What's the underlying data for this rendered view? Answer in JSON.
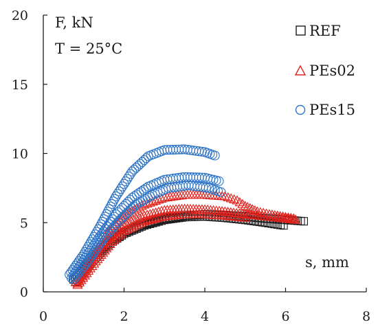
{
  "chart_data": {
    "type": "scatter",
    "title": "",
    "annotations": {
      "y_unit_label": "F, kN",
      "temperature_label": "T = 25°C",
      "x_unit_label": "s, mm"
    },
    "xlim": [
      0,
      8
    ],
    "ylim": [
      0,
      20
    ],
    "x_ticks": [
      0,
      2,
      4,
      6,
      8
    ],
    "y_ticks": [
      0,
      5,
      10,
      15,
      20
    ],
    "grid": false,
    "legend_position": "top-right",
    "series": [
      {
        "name": "REF",
        "marker": "square",
        "color": "#1a1a1a",
        "curves": [
          {
            "points": [
              [
                0.75,
                0.9
              ],
              [
                1.2,
                2.4
              ],
              [
                1.6,
                3.5
              ],
              [
                2.0,
                4.3
              ],
              [
                2.5,
                4.9
              ],
              [
                3.0,
                5.3
              ],
              [
                3.5,
                5.5
              ],
              [
                4.0,
                5.6
              ],
              [
                4.5,
                5.55
              ],
              [
                5.0,
                5.45
              ],
              [
                5.5,
                5.3
              ],
              [
                6.0,
                5.2
              ],
              [
                6.45,
                5.1
              ]
            ]
          },
          {
            "points": [
              [
                0.8,
                0.75
              ],
              [
                1.2,
                2.2
              ],
              [
                1.6,
                3.4
              ],
              [
                2.0,
                4.2
              ],
              [
                2.5,
                4.8
              ],
              [
                3.0,
                5.2
              ],
              [
                3.5,
                5.4
              ],
              [
                4.0,
                5.45
              ],
              [
                4.5,
                5.35
              ],
              [
                5.0,
                5.2
              ],
              [
                5.5,
                5.0
              ],
              [
                5.95,
                4.8
              ]
            ]
          }
        ]
      },
      {
        "name": "PEs02",
        "marker": "triangle",
        "color": "#e0201b",
        "curves": [
          {
            "points": [
              [
                0.8,
                0.7
              ],
              [
                1.2,
                2.5
              ],
              [
                1.6,
                4.3
              ],
              [
                2.0,
                5.5
              ],
              [
                2.5,
                6.3
              ],
              [
                3.0,
                6.8
              ],
              [
                3.5,
                7.0
              ],
              [
                4.0,
                7.0
              ],
              [
                4.5,
                6.9
              ],
              [
                4.8,
                6.6
              ],
              [
                5.0,
                6.2
              ],
              [
                5.3,
                5.8
              ],
              [
                5.6,
                5.6
              ],
              [
                6.0,
                5.4
              ],
              [
                6.2,
                5.3
              ]
            ]
          },
          {
            "points": [
              [
                0.85,
                0.6
              ],
              [
                1.2,
                2.3
              ],
              [
                1.6,
                3.8
              ],
              [
                2.0,
                4.8
              ],
              [
                2.5,
                5.5
              ],
              [
                3.0,
                5.9
              ],
              [
                3.5,
                6.0
              ],
              [
                4.0,
                5.95
              ],
              [
                4.5,
                5.8
              ],
              [
                5.0,
                5.6
              ],
              [
                5.5,
                5.45
              ],
              [
                6.0,
                5.3
              ],
              [
                6.25,
                5.2
              ]
            ]
          },
          {
            "points": [
              [
                0.85,
                0.5
              ],
              [
                1.3,
                2.2
              ],
              [
                1.7,
                3.6
              ],
              [
                2.0,
                4.4
              ],
              [
                2.5,
                5.1
              ],
              [
                3.0,
                5.45
              ],
              [
                3.5,
                5.6
              ],
              [
                4.0,
                5.6
              ],
              [
                4.5,
                5.5
              ],
              [
                5.0,
                5.35
              ]
            ]
          }
        ]
      },
      {
        "name": "PEs15",
        "marker": "circle",
        "color": "#2e74c6",
        "curves": [
          {
            "points": [
              [
                0.65,
                1.25
              ],
              [
                1.0,
                2.7
              ],
              [
                1.4,
                4.7
              ],
              [
                1.8,
                6.9
              ],
              [
                2.2,
                8.7
              ],
              [
                2.6,
                9.8
              ],
              [
                3.0,
                10.25
              ],
              [
                3.5,
                10.3
              ],
              [
                4.0,
                10.1
              ],
              [
                4.25,
                9.85
              ]
            ]
          },
          {
            "points": [
              [
                0.7,
                1.0
              ],
              [
                1.0,
                2.3
              ],
              [
                1.4,
                4.0
              ],
              [
                1.8,
                5.6
              ],
              [
                2.2,
                6.8
              ],
              [
                2.6,
                7.6
              ],
              [
                3.0,
                8.1
              ],
              [
                3.5,
                8.3
              ],
              [
                4.0,
                8.25
              ],
              [
                4.35,
                8.0
              ]
            ]
          },
          {
            "points": [
              [
                0.75,
                0.9
              ],
              [
                1.1,
                2.2
              ],
              [
                1.5,
                3.9
              ],
              [
                1.9,
                5.2
              ],
              [
                2.3,
                6.3
              ],
              [
                2.7,
                7.0
              ],
              [
                3.1,
                7.5
              ],
              [
                3.6,
                7.7
              ],
              [
                4.1,
                7.5
              ],
              [
                4.4,
                7.2
              ]
            ]
          }
        ]
      }
    ]
  }
}
